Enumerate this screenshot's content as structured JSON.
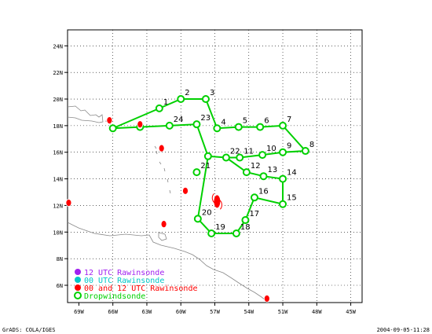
{
  "map": {
    "lat_labels": [
      "24N",
      "22N",
      "20N",
      "18N",
      "16N",
      "14N",
      "12N",
      "10N",
      "8N",
      "6N"
    ],
    "lon_labels": [
      "69W",
      "66W",
      "63W",
      "60W",
      "57W",
      "54W",
      "51W",
      "48W",
      "45W"
    ],
    "lon_range": [
      -70,
      -44
    ],
    "lat_range": [
      4.7,
      25.2
    ],
    "grid": "dotted"
  },
  "legend": {
    "items": [
      {
        "label": "12 UTC Rawinsonde",
        "color": "#a020f0"
      },
      {
        "label": "00 UTC Rawinsonde",
        "color": "#00c8c8"
      },
      {
        "label": "00 and 12 UTC Rawinsonde",
        "color": "#ff0000"
      },
      {
        "label": "Dropwindsonde",
        "color": "#00d000"
      }
    ]
  },
  "footer": {
    "left": "GrADS: COLA/IGES",
    "right": "2004-09-05-11:28"
  },
  "dropwindsonde_track": [
    {
      "id": "",
      "lon": -66.0,
      "lat": 17.8
    },
    {
      "id": "1",
      "lon": -61.9,
      "lat": 19.3
    },
    {
      "id": "2",
      "lon": -60.0,
      "lat": 20.0
    },
    {
      "id": "3",
      "lon": -57.8,
      "lat": 20.0
    },
    {
      "id": "4",
      "lon": -56.8,
      "lat": 17.8
    },
    {
      "id": "5",
      "lon": -54.9,
      "lat": 17.9
    },
    {
      "id": "6",
      "lon": -53.0,
      "lat": 17.9
    },
    {
      "id": "7",
      "lon": -51.0,
      "lat": 18.0
    },
    {
      "id": "8",
      "lon": -49.0,
      "lat": 16.1
    },
    {
      "id": "9",
      "lon": -51.0,
      "lat": 16.0
    },
    {
      "id": "10",
      "lon": -52.8,
      "lat": 15.8
    },
    {
      "id": "11",
      "lon": -54.8,
      "lat": 15.6
    },
    {
      "id": "22",
      "lon": -56.0,
      "lat": 15.6
    },
    {
      "id": "12",
      "lon": -54.2,
      "lat": 14.5
    },
    {
      "id": "13",
      "lon": -52.7,
      "lat": 14.2
    },
    {
      "id": "14",
      "lon": -51.0,
      "lat": 14.0
    },
    {
      "id": "15",
      "lon": -51.0,
      "lat": 12.1
    },
    {
      "id": "16",
      "lon": -53.5,
      "lat": 12.6
    },
    {
      "id": "17",
      "lon": -54.3,
      "lat": 10.9
    },
    {
      "id": "18",
      "lon": -55.1,
      "lat": 9.9
    },
    {
      "id": "19",
      "lon": -57.3,
      "lat": 9.9
    },
    {
      "id": "20",
      "lon": -58.5,
      "lat": 11.0
    },
    {
      "id": "21",
      "lon": -58.6,
      "lat": 14.5
    },
    {
      "id": "",
      "lon": -57.6,
      "lat": 15.7
    },
    {
      "id": "23",
      "lon": -58.6,
      "lat": 18.1
    },
    {
      "id": "24",
      "lon": -61.0,
      "lat": 18.0
    },
    {
      "id": "",
      "lon": -63.6,
      "lat": 17.9
    }
  ],
  "rawinsondes_00_and_12_utc": [
    {
      "lon": -66.3,
      "lat": 18.4
    },
    {
      "lon": -63.6,
      "lat": 18.1
    },
    {
      "lon": -61.7,
      "lat": 16.3
    },
    {
      "lon": -59.6,
      "lat": 13.1
    },
    {
      "lon": -69.9,
      "lat": 12.2
    },
    {
      "lon": -61.5,
      "lat": 10.6
    },
    {
      "lon": -52.4,
      "lat": 5.0
    }
  ],
  "storm_symbol": {
    "lon": -56.8,
    "lat": 12.3
  }
}
